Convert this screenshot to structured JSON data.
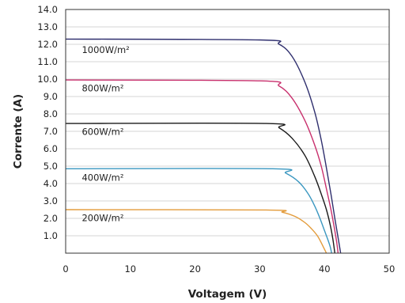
{
  "chart_data": {
    "type": "line",
    "xlabel": "Voltagem (V)",
    "ylabel": "Corrente (A)",
    "xlim": [
      0,
      50
    ],
    "ylim": [
      0,
      14
    ],
    "x_ticks": [
      "0",
      "10",
      "20",
      "30",
      "40",
      "50"
    ],
    "y_ticks": [
      "1.0",
      "2.0",
      "3.0",
      "4.0",
      "5.0",
      "6.0",
      "7.0",
      "8.0",
      "9.0",
      "10.0",
      "11.0",
      "12.0",
      "13.0",
      "14.0"
    ],
    "grid": "horizontal",
    "series": [
      {
        "name": "1000W/m²",
        "color": "#2f2f6e",
        "x": [
          0,
          30,
          33,
          35,
          37,
          38.5,
          39.5,
          40.3,
          41,
          41.6,
          42.1,
          42.5
        ],
        "y": [
          12.3,
          12.25,
          12.0,
          11.3,
          9.8,
          8.1,
          6.5,
          4.9,
          3.4,
          2.0,
          0.9,
          0
        ]
      },
      {
        "name": "800W/m²",
        "color": "#c8306d",
        "x": [
          0,
          30,
          33,
          35,
          37,
          38.5,
          39.5,
          40.3,
          41,
          41.5,
          41.9,
          42.1
        ],
        "y": [
          9.95,
          9.9,
          9.6,
          8.9,
          7.6,
          6.2,
          5.0,
          3.7,
          2.5,
          1.5,
          0.6,
          0
        ]
      },
      {
        "name": "600W/m²",
        "color": "#1a1a1a",
        "x": [
          0,
          31,
          33,
          35,
          37,
          38.5,
          39.5,
          40.3,
          40.9,
          41.3,
          41.6
        ],
        "y": [
          7.45,
          7.45,
          7.2,
          6.6,
          5.6,
          4.4,
          3.4,
          2.5,
          1.6,
          0.8,
          0
        ]
      },
      {
        "name": "400W/m²",
        "color": "#3a97c0",
        "x": [
          0,
          32,
          34,
          36,
          37.5,
          38.5,
          39.3,
          40,
          40.5,
          40.9,
          41.1
        ],
        "y": [
          4.85,
          4.85,
          4.6,
          4.1,
          3.4,
          2.7,
          2.0,
          1.3,
          0.8,
          0.35,
          0
        ]
      },
      {
        "name": "200W/m²",
        "color": "#e39b3a",
        "x": [
          0,
          31,
          33.5,
          35.5,
          37,
          38,
          38.9,
          39.5,
          39.9,
          40.3
        ],
        "y": [
          2.5,
          2.48,
          2.35,
          2.1,
          1.75,
          1.4,
          1.0,
          0.6,
          0.3,
          0
        ]
      }
    ],
    "labels": [
      {
        "text": "1000W/m²",
        "x": 2.5,
        "y": 11.5
      },
      {
        "text": "800W/m²",
        "x": 2.5,
        "y": 9.3
      },
      {
        "text": "600W/m²",
        "x": 2.5,
        "y": 6.8
      },
      {
        "text": "400W/m²",
        "x": 2.5,
        "y": 4.15
      },
      {
        "text": "200W/m²",
        "x": 2.5,
        "y": 1.85
      }
    ]
  }
}
